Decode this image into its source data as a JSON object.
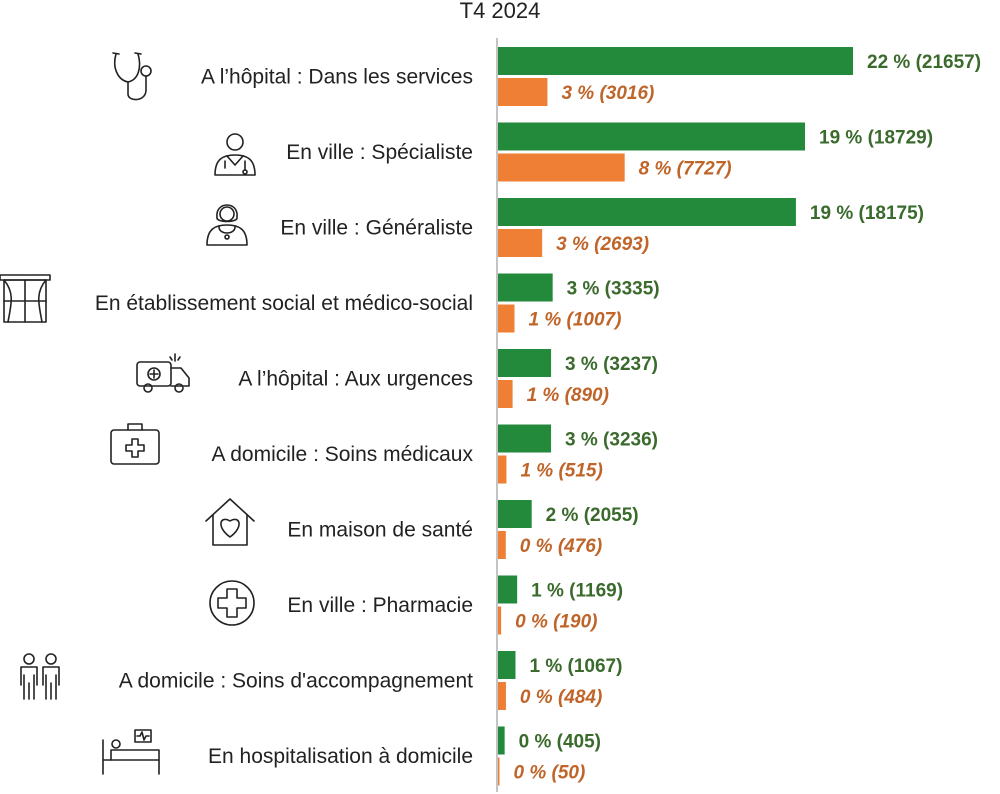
{
  "chart_data": {
    "type": "bar",
    "orientation": "horizontal",
    "title": "T4 2024",
    "categories": [
      {
        "label": "A l’hôpital : Dans les services",
        "icon": "stethoscope-icon"
      },
      {
        "label": "En ville : Spécialiste",
        "icon": "doctor-male-icon"
      },
      {
        "label": "En ville : Généraliste",
        "icon": "doctor-female-icon"
      },
      {
        "label": "En établissement social et médico-social",
        "icon": "window-curtains-icon"
      },
      {
        "label": "A l’hôpital : Aux urgences",
        "icon": "ambulance-icon"
      },
      {
        "label": "A domicile : Soins médicaux",
        "icon": "medical-kit-icon"
      },
      {
        "label": "En maison de santé",
        "icon": "house-heart-icon"
      },
      {
        "label": "En ville : Pharmacie",
        "icon": "pharmacy-cross-icon"
      },
      {
        "label": "A domicile : Soins d'accompagnement",
        "icon": "caregivers-icon"
      },
      {
        "label": "En hospitalisation à domicile",
        "icon": "hospital-bed-icon"
      }
    ],
    "series": [
      {
        "color": "#238a3c",
        "values": [
          21657,
          18729,
          18175,
          3335,
          3237,
          3236,
          2055,
          1169,
          1067,
          405
        ],
        "labels": [
          "22 % (21657)",
          "19 % (18729)",
          "19 % (18175)",
          "3 % (3335)",
          "3 % (3237)",
          "3 % (3236)",
          "2 % (2055)",
          "1 % (1169)",
          "1 % (1067)",
          "0 % (405)"
        ]
      },
      {
        "color": "#ee7f34",
        "values": [
          3016,
          7727,
          2693,
          1007,
          890,
          515,
          476,
          190,
          484,
          50
        ],
        "labels": [
          "3 % (3016)",
          "8 % (7727)",
          "3 % (2693)",
          "1 % (1007)",
          "1 % (890)",
          "1 % (515)",
          "0 % (476)",
          "0 % (190)",
          "0 % (484)",
          "0 % (50)"
        ]
      }
    ],
    "xlim": [
      0,
      21657
    ],
    "axis_color": "#b0b0b0",
    "grid": false,
    "legend": "none"
  }
}
